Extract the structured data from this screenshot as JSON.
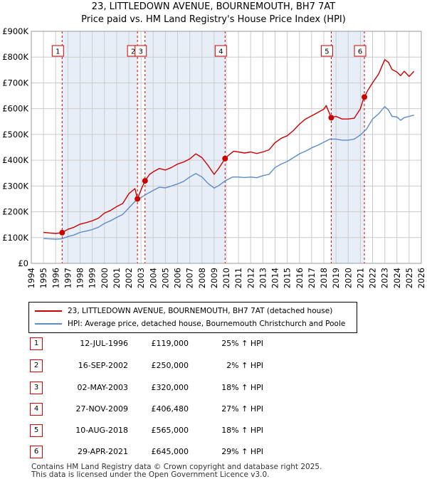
{
  "chart_data": {
    "type": "line",
    "title_line1": "23, LITTLEDOWN AVENUE, BOURNEMOUTH, BH7 7AT",
    "title_line2": "Price paid vs. HM Land Registry's House Price Index (HPI)",
    "x_range": [
      1995.0,
      2025.7
    ],
    "ylim": [
      0,
      900000
    ],
    "y_ticks": [
      {
        "value": 0,
        "label": "£0"
      },
      {
        "value": 100000,
        "label": "£100K"
      },
      {
        "value": 200000,
        "label": "£200K"
      },
      {
        "value": 300000,
        "label": "£300K"
      },
      {
        "value": 400000,
        "label": "£400K"
      },
      {
        "value": 500000,
        "label": "£500K"
      },
      {
        "value": 600000,
        "label": "£600K"
      },
      {
        "value": 700000,
        "label": "£700K"
      },
      {
        "value": 800000,
        "label": "£800K"
      },
      {
        "value": 900000,
        "label": "£900K"
      }
    ],
    "x_ticks": [
      "1994",
      "1995",
      "1996",
      "1997",
      "1998",
      "1999",
      "2000",
      "2001",
      "2002",
      "2003",
      "2004",
      "2005",
      "2006",
      "2007",
      "2008",
      "2009",
      "2010",
      "2011",
      "2012",
      "2013",
      "2014",
      "2015",
      "2016",
      "2017",
      "2018",
      "2019",
      "2020",
      "2021",
      "2022",
      "2023",
      "2024",
      "2025",
      "2026"
    ],
    "colors": {
      "property": "#cc0000",
      "hpi": "#5b8cc8",
      "band": "#e8eef8",
      "grid": "#cccccc",
      "marker_box": "#cc0000"
    },
    "series": [
      {
        "name": "23, LITTLEDOWN AVENUE, BOURNEMOUTH, BH7 7AT (detached house)",
        "x": [
          1995.0,
          1995.5,
          1996.0,
          1996.53,
          1997.0,
          1997.5,
          1998.0,
          1998.5,
          1999.0,
          1999.5,
          2000.0,
          2000.5,
          2001.0,
          2001.5,
          2002.0,
          2002.5,
          2002.71,
          2003.0,
          2003.33,
          2003.7,
          2004.0,
          2004.5,
          2005.0,
          2005.5,
          2006.0,
          2006.5,
          2007.0,
          2007.5,
          2008.0,
          2008.5,
          2009.0,
          2009.4,
          2009.9,
          2010.2,
          2010.6,
          2011.0,
          2011.5,
          2012.0,
          2012.5,
          2013.0,
          2013.5,
          2014.0,
          2014.5,
          2015.0,
          2015.5,
          2016.0,
          2016.5,
          2017.0,
          2017.5,
          2018.0,
          2018.2,
          2018.61,
          2019.0,
          2019.5,
          2020.0,
          2020.5,
          2021.0,
          2021.2,
          2021.33,
          2021.6,
          2022.0,
          2022.5,
          2023.0,
          2023.3,
          2023.6,
          2024.0,
          2024.3,
          2024.6,
          2025.0,
          2025.4
        ],
        "values": [
          120000,
          118000,
          116000,
          119000,
          132000,
          140000,
          152000,
          158000,
          165000,
          175000,
          195000,
          205000,
          220000,
          232000,
          270000,
          290000,
          250000,
          285000,
          320000,
          345000,
          355000,
          368000,
          362000,
          372000,
          385000,
          393000,
          405000,
          425000,
          410000,
          380000,
          345000,
          370000,
          406480,
          420000,
          435000,
          432000,
          428000,
          432000,
          426000,
          432000,
          440000,
          468000,
          485000,
          495000,
          515000,
          540000,
          560000,
          572000,
          585000,
          598000,
          612000,
          565000,
          570000,
          560000,
          560000,
          563000,
          600000,
          630000,
          645000,
          670000,
          700000,
          735000,
          790000,
          780000,
          752000,
          742000,
          728000,
          745000,
          725000,
          745000
        ]
      },
      {
        "name": "HPI: Average price, detached house, Bournemouth Christchurch and Poole",
        "x": [
          1995.0,
          1995.5,
          1996.0,
          1996.5,
          1997.0,
          1997.5,
          1998.0,
          1998.5,
          1999.0,
          1999.5,
          2000.0,
          2000.5,
          2001.0,
          2001.5,
          2002.0,
          2002.5,
          2003.0,
          2003.5,
          2004.0,
          2004.5,
          2005.0,
          2005.5,
          2006.0,
          2006.5,
          2007.0,
          2007.5,
          2008.0,
          2008.5,
          2009.0,
          2009.4,
          2009.9,
          2010.5,
          2011.0,
          2011.5,
          2012.0,
          2012.5,
          2013.0,
          2013.5,
          2014.0,
          2014.5,
          2015.0,
          2015.5,
          2016.0,
          2016.5,
          2017.0,
          2017.5,
          2018.0,
          2018.5,
          2019.0,
          2019.5,
          2020.0,
          2020.5,
          2021.0,
          2021.5,
          2022.0,
          2022.5,
          2023.0,
          2023.3,
          2023.6,
          2024.0,
          2024.3,
          2024.6,
          2025.0,
          2025.4
        ],
        "values": [
          96000,
          95000,
          94000,
          95000,
          104000,
          110000,
          120000,
          125000,
          131000,
          140000,
          155000,
          165000,
          178000,
          190000,
          215000,
          240000,
          255000,
          270000,
          283000,
          295000,
          293000,
          300000,
          308000,
          318000,
          335000,
          348000,
          335000,
          310000,
          292000,
          302000,
          320000,
          335000,
          335000,
          333000,
          335000,
          332000,
          340000,
          345000,
          372000,
          385000,
          395000,
          410000,
          425000,
          435000,
          448000,
          458000,
          470000,
          482000,
          482000,
          478000,
          478000,
          482000,
          498000,
          520000,
          560000,
          580000,
          608000,
          595000,
          570000,
          568000,
          555000,
          565000,
          570000,
          575000
        ]
      }
    ],
    "sales": [
      {
        "num": "1",
        "x": 1996.53,
        "value": 119000
      },
      {
        "num": "2",
        "x": 2002.71,
        "value": 250000
      },
      {
        "num": "3",
        "x": 2003.33,
        "value": 320000
      },
      {
        "num": "4",
        "x": 2009.9,
        "value": 406480
      },
      {
        "num": "5",
        "x": 2018.61,
        "value": 565000
      },
      {
        "num": "6",
        "x": 2021.33,
        "value": 645000
      }
    ]
  },
  "legend": {
    "property_label": "23, LITTLEDOWN AVENUE, BOURNEMOUTH, BH7 7AT (detached house)",
    "hpi_label": "HPI: Average price, detached house, Bournemouth Christchurch and Poole"
  },
  "transactions": [
    {
      "num": "1",
      "date": "12-JUL-1996",
      "price": "£119,000",
      "hpi": "25% ↑ HPI"
    },
    {
      "num": "2",
      "date": "16-SEP-2002",
      "price": "£250,000",
      "hpi": "2% ↑ HPI"
    },
    {
      "num": "3",
      "date": "02-MAY-2003",
      "price": "£320,000",
      "hpi": "18% ↑ HPI"
    },
    {
      "num": "4",
      "date": "27-NOV-2009",
      "price": "£406,480",
      "hpi": "27% ↑ HPI"
    },
    {
      "num": "5",
      "date": "10-AUG-2018",
      "price": "£565,000",
      "hpi": "18% ↑ HPI"
    },
    {
      "num": "6",
      "date": "29-APR-2021",
      "price": "£645,000",
      "hpi": "29% ↑ HPI"
    }
  ],
  "footer": {
    "line1": "Contains HM Land Registry data © Crown copyright and database right 2025.",
    "line2": "This data is licensed under the Open Government Licence v3.0."
  }
}
